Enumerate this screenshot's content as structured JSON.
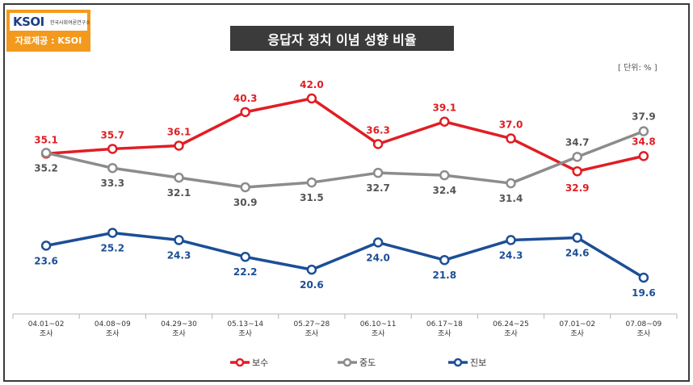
{
  "logo": {
    "mark": "KSOI",
    "org": "한국사회여론연구소",
    "source": "자료제공 : KSOI"
  },
  "chart_data": {
    "type": "line",
    "title": "응답자 정치 이념 성향 비율",
    "unit": "[ 단위: % ]",
    "categories": [
      [
        "04.01~02",
        "조사"
      ],
      [
        "04.08~09",
        "조사"
      ],
      [
        "04.29~30",
        "조사"
      ],
      [
        "05.13~14",
        "조사"
      ],
      [
        "05.27~28",
        "조사"
      ],
      [
        "06.10~11",
        "조사"
      ],
      [
        "06.17~18",
        "조사"
      ],
      [
        "06.24~25",
        "조사"
      ],
      [
        "07.01~02",
        "조사"
      ],
      [
        "07.08~09",
        "조사"
      ]
    ],
    "series": [
      {
        "name": "보수",
        "color": "#e01e24",
        "values": [
          35.1,
          35.7,
          36.1,
          40.3,
          42.0,
          36.3,
          39.1,
          37.0,
          32.9,
          34.8
        ]
      },
      {
        "name": "중도",
        "color": "#8c8c8c",
        "values": [
          35.2,
          33.3,
          32.1,
          30.9,
          31.5,
          32.7,
          32.4,
          31.4,
          34.7,
          37.9
        ]
      },
      {
        "name": "진보",
        "color": "#1c4e96",
        "values": [
          23.6,
          25.2,
          24.3,
          22.2,
          20.6,
          24.0,
          21.8,
          24.3,
          24.6,
          19.6
        ]
      }
    ],
    "legend_position": "bottom",
    "grid": false
  }
}
